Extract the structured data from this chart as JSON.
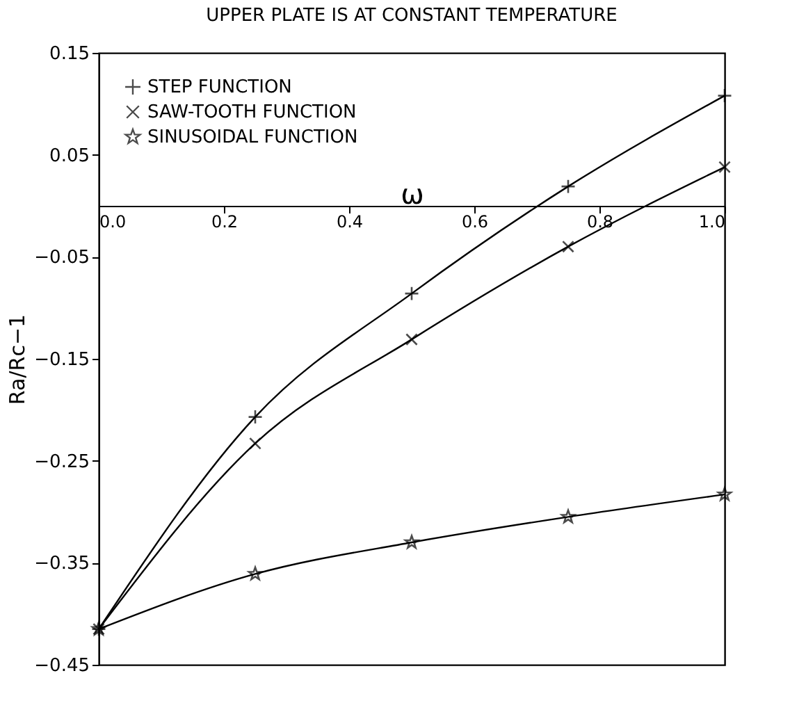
{
  "chart_data": {
    "type": "line",
    "title": "UPPER PLATE IS AT CONSTANT TEMPERATURE",
    "xlabel": "ω",
    "ylabel": "Ra/Rc−1",
    "x": [
      0,
      0.25,
      0.5,
      0.75,
      1.0
    ],
    "series": [
      {
        "name": "STEP FUNCTION",
        "color": "#000000",
        "marker": "cross",
        "values": [
          -0.415,
          -0.207,
          -0.086,
          0.019,
          0.108
        ]
      },
      {
        "name": "SAW-TOOTH FUNCTION",
        "color": "#000000",
        "marker": "x",
        "values": [
          -0.415,
          -0.233,
          -0.131,
          -0.04,
          0.038
        ]
      },
      {
        "name": "SINUSOIDAL FUNCTION",
        "color": "#000000",
        "marker": "star",
        "values": [
          -0.415,
          -0.361,
          -0.33,
          -0.305,
          -0.283
        ]
      }
    ],
    "xlim": [
      0,
      1.0
    ],
    "xticks": [
      {
        "value": 0,
        "label": "0.0"
      },
      0.2,
      0.4,
      0.6,
      0.8,
      {
        "value": 1.0,
        "label": "1.0"
      }
    ],
    "ylim": [
      -0.45,
      0.15
    ],
    "yticks": [
      -0.45,
      -0.35,
      -0.25,
      -0.15,
      -0.05,
      0.05,
      0.15
    ],
    "grid": false,
    "legend": "top left",
    "line_style": "solid"
  }
}
